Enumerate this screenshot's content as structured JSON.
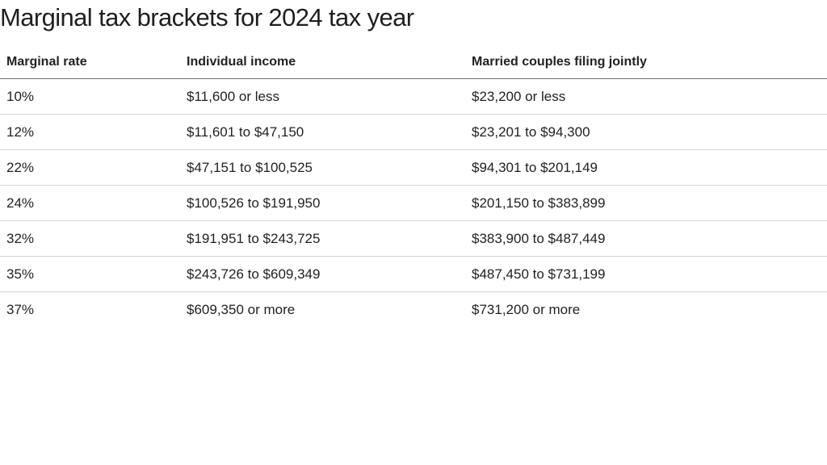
{
  "chart_data": {
    "type": "table",
    "title": "Marginal tax brackets for 2024 tax year",
    "columns": [
      "Marginal rate",
      "Individual income",
      "Married couples filing jointly"
    ],
    "rows": [
      [
        "10%",
        "$11,600 or less",
        "$23,200 or less"
      ],
      [
        "12%",
        "$11,601 to $47,150",
        "$23,201 to $94,300"
      ],
      [
        "22%",
        "$47,151 to $100,525",
        "$94,301 to $201,149"
      ],
      [
        "24%",
        "$100,526 to $191,950",
        "$201,150 to $383,899"
      ],
      [
        "32%",
        "$191,951 to $243,725",
        "$383,900 to $487,449"
      ],
      [
        "35%",
        "$243,726 to $609,349",
        "$487,450 to $731,199"
      ],
      [
        "37%",
        "$609,350 or more",
        "$731,200 or more"
      ]
    ]
  }
}
